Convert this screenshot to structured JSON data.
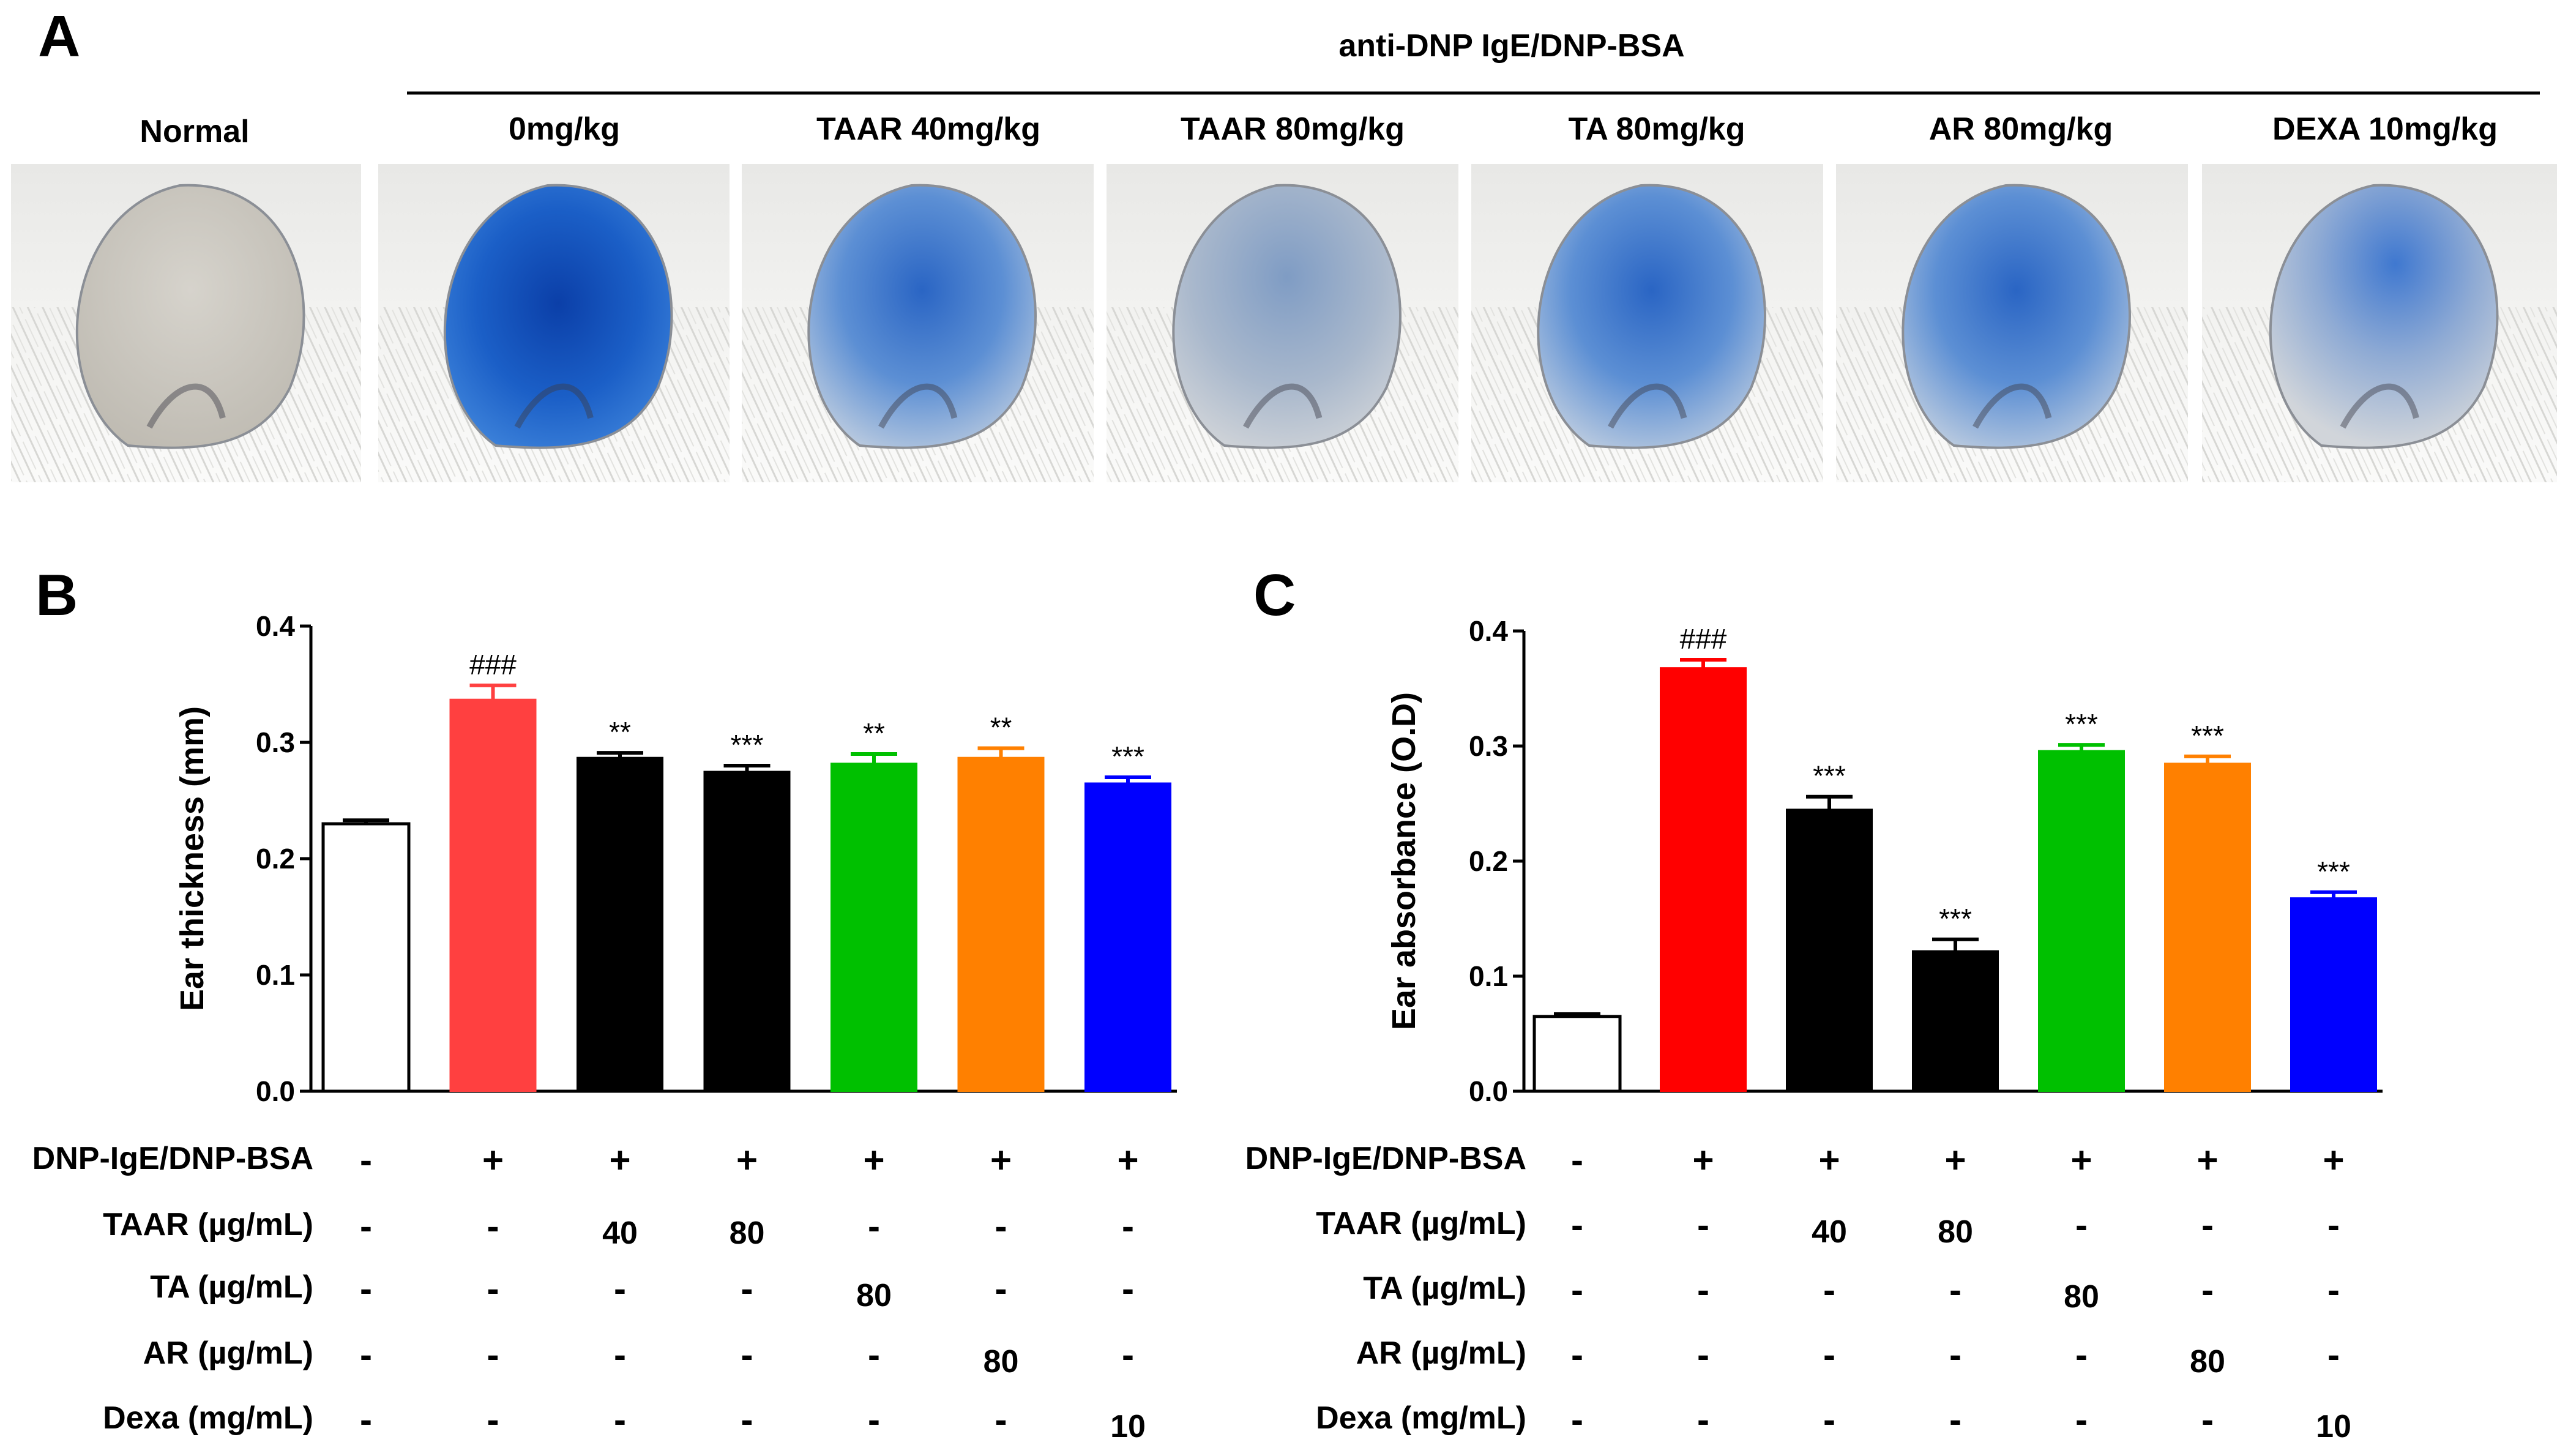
{
  "panelA": {
    "label": "A",
    "bracket_title": "anti-DNP IgE/DNP-BSA",
    "photos": [
      {
        "title": "Normal",
        "stain": "none"
      },
      {
        "title": "0mg/kg",
        "stain": "heavy"
      },
      {
        "title": "TAAR 40mg/kg",
        "stain": "moderate"
      },
      {
        "title": "TAAR 80mg/kg",
        "stain": "light"
      },
      {
        "title": "TA 80mg/kg",
        "stain": "moderate"
      },
      {
        "title": "AR 80mg/kg",
        "stain": "moderate"
      },
      {
        "title": "DEXA 10mg/kg",
        "stain": "mild"
      }
    ]
  },
  "chart_data": [
    {
      "type": "bar",
      "panel": "B",
      "ylabel": "Ear thickness (mm)",
      "ylim": [
        0,
        0.4
      ],
      "yticks": [
        "0.0",
        "0.1",
        "0.2",
        "0.3",
        "0.4"
      ],
      "categories": [
        "Normal",
        "0mg/kg",
        "TAAR 40",
        "TAAR 80",
        "TA 80",
        "AR 80",
        "Dexa 10"
      ],
      "values": [
        0.23,
        0.337,
        0.287,
        0.275,
        0.282,
        0.287,
        0.265
      ],
      "errors": [
        0.003,
        0.012,
        0.004,
        0.005,
        0.008,
        0.008,
        0.005
      ],
      "significance": [
        "",
        "###",
        "**",
        "***",
        "**",
        "**",
        "***"
      ],
      "colors": [
        "#ffffff",
        "#ff4040",
        "#000000",
        "#000000",
        "#00c000",
        "#ff8000",
        "#0000ff"
      ]
    },
    {
      "type": "bar",
      "panel": "C",
      "ylabel": "Ear absorbance (O.D)",
      "ylim": [
        0,
        0.4
      ],
      "yticks": [
        "0.0",
        "0.1",
        "0.2",
        "0.3",
        "0.4"
      ],
      "categories": [
        "Normal",
        "0mg/kg",
        "TAAR 40",
        "TAAR 80",
        "TA 80",
        "AR 80",
        "Dexa 10"
      ],
      "values": [
        0.065,
        0.368,
        0.245,
        0.122,
        0.296,
        0.285,
        0.168
      ],
      "errors": [
        0.002,
        0.007,
        0.011,
        0.01,
        0.005,
        0.006,
        0.005
      ],
      "significance": [
        "",
        "###",
        "***",
        "***",
        "***",
        "***",
        "***"
      ],
      "colors": [
        "#ffffff",
        "#ff0000",
        "#000000",
        "#000000",
        "#00c000",
        "#ff8000",
        "#0000ff"
      ]
    }
  ],
  "treatment_table": {
    "rows": [
      {
        "label": "DNP-IgE/DNP-BSA",
        "cells": [
          "-",
          "+",
          "+",
          "+",
          "+",
          "+",
          "+"
        ]
      },
      {
        "label": "TAAR (µg/mL)",
        "cells": [
          "-",
          "-",
          "40",
          "80",
          "-",
          "-",
          "-"
        ]
      },
      {
        "label": "TA (µg/mL)",
        "cells": [
          "-",
          "-",
          "-",
          "-",
          "80",
          "-",
          "-"
        ]
      },
      {
        "label": "AR (µg/mL)",
        "cells": [
          "-",
          "-",
          "-",
          "-",
          "-",
          "80",
          "-"
        ]
      },
      {
        "label": "Dexa (mg/mL)",
        "cells": [
          "-",
          "-",
          "-",
          "-",
          "-",
          "-",
          "10"
        ]
      }
    ]
  }
}
